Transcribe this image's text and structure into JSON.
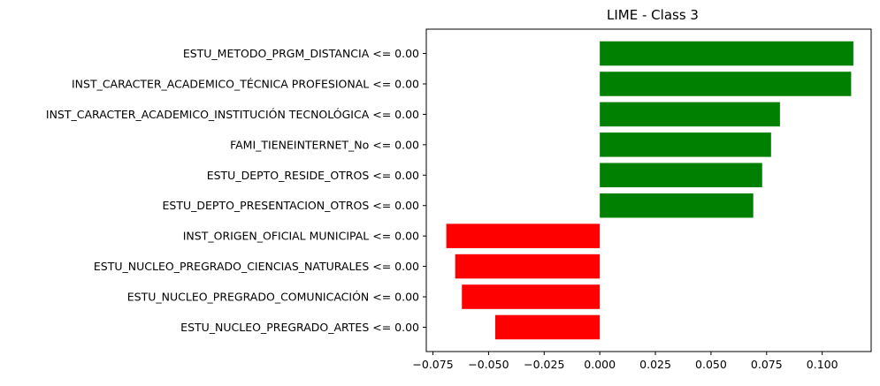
{
  "chart_data": {
    "type": "bar",
    "orientation": "horizontal",
    "title": "LIME - Class 3",
    "xlabel": "",
    "ylabel": "",
    "xlim": [
      -0.078,
      0.122
    ],
    "xticks": [
      -0.075,
      -0.05,
      -0.025,
      0.0,
      0.025,
      0.05,
      0.075,
      0.1
    ],
    "xtick_labels": [
      "−0.075",
      "−0.050",
      "−0.025",
      "0.000",
      "0.025",
      "0.050",
      "0.075",
      "0.100"
    ],
    "grid": false,
    "legend": "none",
    "positive_color": "#008000",
    "negative_color": "#ff0000",
    "categories": [
      "ESTU_METODO_PRGM_DISTANCIA <= 0.00",
      "INST_CARACTER_ACADEMICO_TÉCNICA PROFESIONAL <= 0.00",
      "INST_CARACTER_ACADEMICO_INSTITUCIÓN TECNOLÓGICA <= 0.00",
      "FAMI_TIENEINTERNET_No <= 0.00",
      "ESTU_DEPTO_RESIDE_OTROS <= 0.00",
      "ESTU_DEPTO_PRESENTACION_OTROS <= 0.00",
      "INST_ORIGEN_OFICIAL MUNICIPAL <= 0.00",
      "ESTU_NUCLEO_PREGRADO_CIENCIAS_NATURALES <= 0.00",
      "ESTU_NUCLEO_PREGRADO_COMUNICACIÓN <= 0.00",
      "ESTU_NUCLEO_PREGRADO_ARTES <= 0.00"
    ],
    "values": [
      0.114,
      0.113,
      0.081,
      0.077,
      0.073,
      0.069,
      -0.069,
      -0.065,
      -0.062,
      -0.047
    ]
  }
}
